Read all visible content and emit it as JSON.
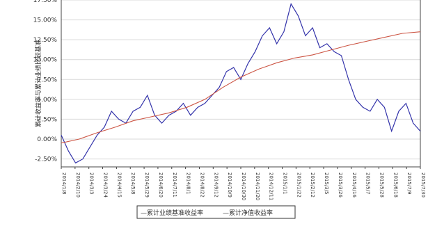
{
  "chart_data": {
    "type": "line",
    "ylabel": "累计收益率与累计业绩比较基准",
    "yticks": [
      "15.00%",
      "12.50%",
      "10.00%",
      "7.50%",
      "5.00%",
      "2.50%",
      "0.00%",
      "-2.50%"
    ],
    "ytick_values": [
      15,
      12.5,
      10,
      7.5,
      5,
      2.5,
      0,
      -2.5
    ],
    "ylim": [
      -3.5,
      17.5
    ],
    "top_partial_tick": "17.50%",
    "xticks": [
      "2014/1/8",
      "2014/2/10",
      "2014/3/3",
      "2014/3/24",
      "2014/4/15",
      "2014/5/8",
      "2014/5/29",
      "2014/6/20",
      "2014/7/11",
      "2014/8/1",
      "2014/8/22",
      "2014/9/12",
      "2014/10/9",
      "2014/10/30",
      "2014/11/20",
      "2014/12/11",
      "2015/1/1",
      "2015/1/22",
      "2015/2/12",
      "2015/3/5",
      "2015/3/26",
      "2015/4/16",
      "2015/5/7",
      "2015/5/28",
      "2015/6/18",
      "2015/7/9",
      "2015/7/30"
    ],
    "grid": true,
    "legend_position": "bottom",
    "series": [
      {
        "name": "累计净值收益率",
        "color": "#3333aa",
        "x": [
          0,
          0.02,
          0.04,
          0.06,
          0.08,
          0.1,
          0.12,
          0.14,
          0.16,
          0.18,
          0.2,
          0.22,
          0.24,
          0.26,
          0.28,
          0.3,
          0.32,
          0.34,
          0.36,
          0.38,
          0.4,
          0.42,
          0.44,
          0.46,
          0.48,
          0.5,
          0.52,
          0.54,
          0.56,
          0.58,
          0.6,
          0.62,
          0.64,
          0.66,
          0.68,
          0.7,
          0.72,
          0.74,
          0.76,
          0.78,
          0.8,
          0.82,
          0.84,
          0.86,
          0.88,
          0.9,
          0.92,
          0.94,
          0.96,
          0.98,
          1.0
        ],
        "y": [
          0.5,
          -1.5,
          -3.0,
          -2.5,
          -1.0,
          0.5,
          1.5,
          3.5,
          2.5,
          2.0,
          3.5,
          4.0,
          5.5,
          3.0,
          2.0,
          3.0,
          3.5,
          4.5,
          3.0,
          4.0,
          4.5,
          5.5,
          6.5,
          8.5,
          9.0,
          7.5,
          9.5,
          11.0,
          13.0,
          14.0,
          12.0,
          13.5,
          17.0,
          15.5,
          13.0,
          14.0,
          11.5,
          12.0,
          11.0,
          10.5,
          7.5,
          5.0,
          4.0,
          3.5,
          5.0,
          4.0,
          1.0,
          3.5,
          4.5,
          2.0,
          1.0
        ]
      },
      {
        "name": "累计业绩比较基准收益率",
        "color": "#cc5544",
        "x": [
          0,
          0.05,
          0.1,
          0.15,
          0.2,
          0.25,
          0.3,
          0.35,
          0.4,
          0.45,
          0.5,
          0.55,
          0.6,
          0.65,
          0.7,
          0.75,
          0.8,
          0.85,
          0.9,
          0.95,
          1.0
        ],
        "y": [
          -0.5,
          0.0,
          0.8,
          1.5,
          2.3,
          2.8,
          3.3,
          4.0,
          5.0,
          6.5,
          7.8,
          8.8,
          9.6,
          10.2,
          10.6,
          11.2,
          11.8,
          12.3,
          12.8,
          13.3,
          13.5
        ]
      }
    ],
    "legend": [
      "—累计业绩基准收益率",
      "—累计净值收益率"
    ]
  }
}
